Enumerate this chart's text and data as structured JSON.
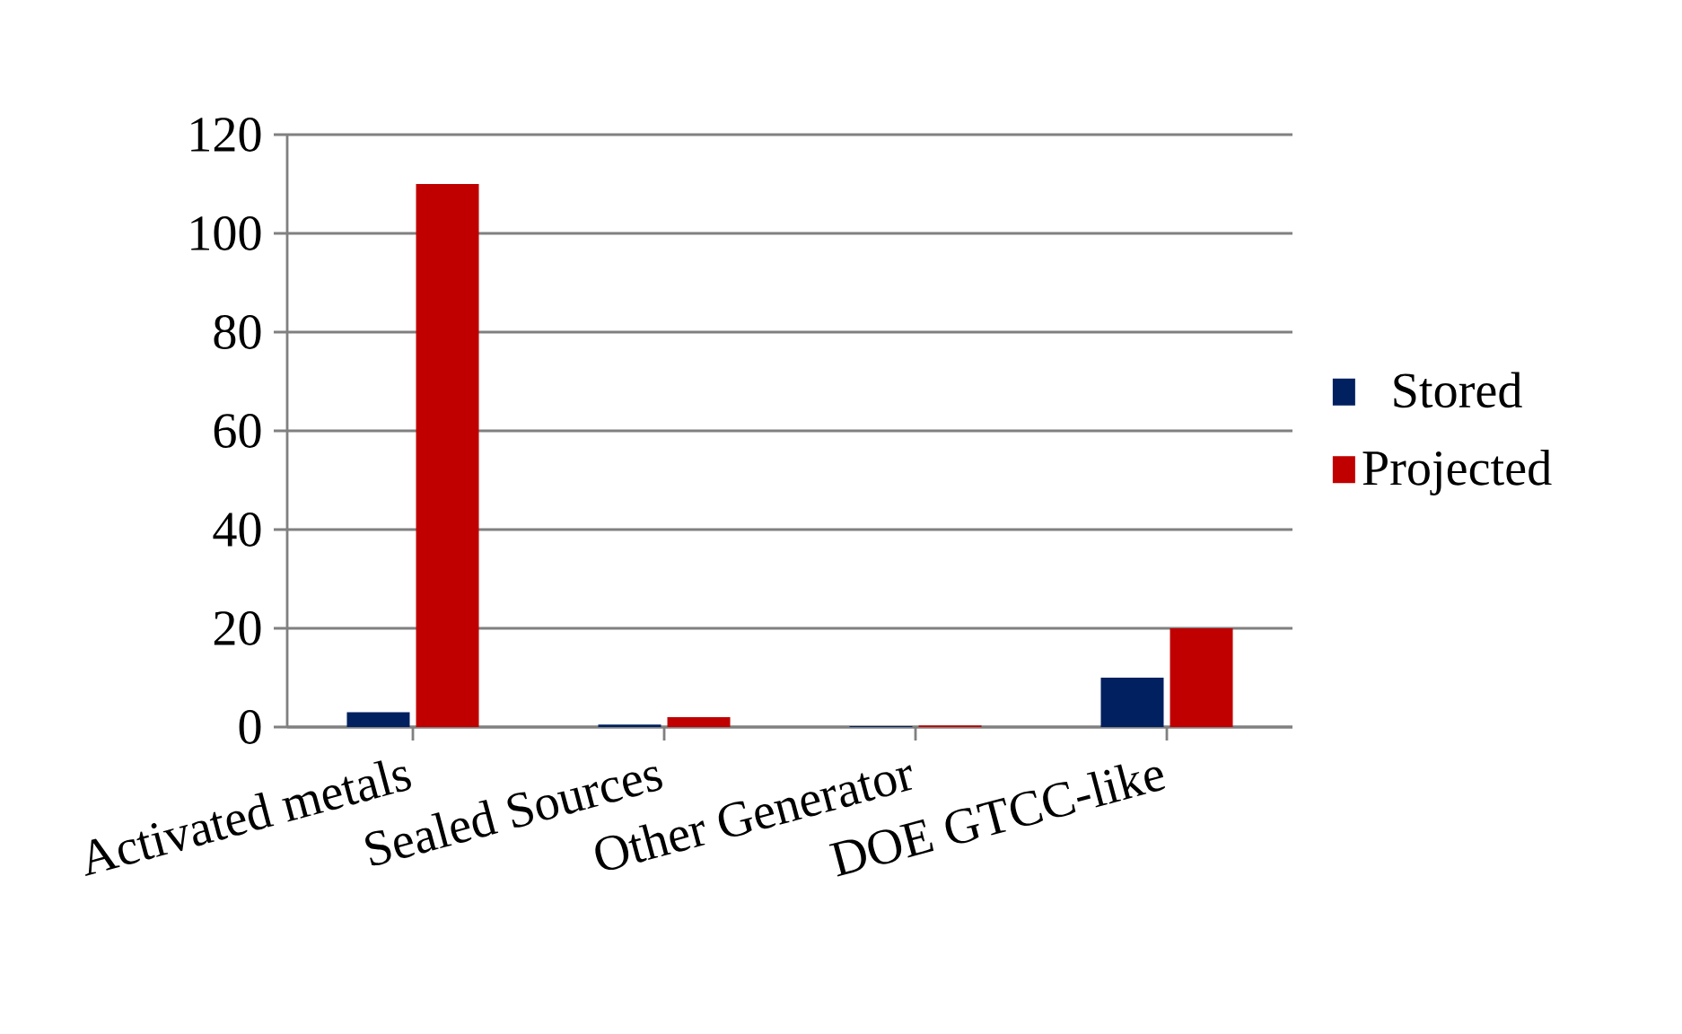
{
  "chart_data": {
    "type": "bar",
    "categories": [
      "Activated metals",
      "Sealed Sources",
      "Other Generator",
      "DOE GTCC-like"
    ],
    "series": [
      {
        "name": "Stored",
        "color": "#002060",
        "values": [
          3,
          0.5,
          0.2,
          10
        ]
      },
      {
        "name": "Projected",
        "color": "#c00000",
        "values": [
          110,
          2,
          0.3,
          20
        ]
      }
    ],
    "ylim": [
      0,
      120
    ],
    "yticks": [
      0,
      20,
      40,
      60,
      80,
      100,
      120
    ],
    "grid": "y",
    "legend": "right"
  }
}
